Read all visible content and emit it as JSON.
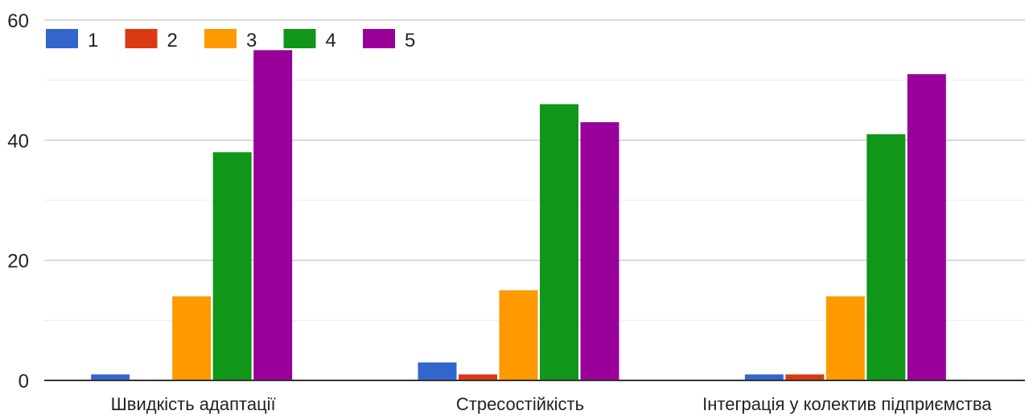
{
  "chart_data": {
    "type": "bar",
    "categories": [
      "Швидкість адаптації",
      "Стресостійкість",
      "Інтеграція у колектив підприємства"
    ],
    "series": [
      {
        "name": "1",
        "color": "#3366cc",
        "values": [
          1,
          3,
          1
        ]
      },
      {
        "name": "2",
        "color": "#dc3912",
        "values": [
          0,
          1,
          1
        ]
      },
      {
        "name": "3",
        "color": "#ff9900",
        "values": [
          14,
          15,
          14
        ]
      },
      {
        "name": "4",
        "color": "#109618",
        "values": [
          38,
          46,
          41
        ]
      },
      {
        "name": "5",
        "color": "#990099",
        "values": [
          55,
          43,
          51
        ]
      }
    ],
    "y_ticks": [
      "0",
      "20",
      "40",
      "60"
    ],
    "ylim": [
      0,
      60
    ],
    "grid": true,
    "legend_position": "top-left"
  }
}
